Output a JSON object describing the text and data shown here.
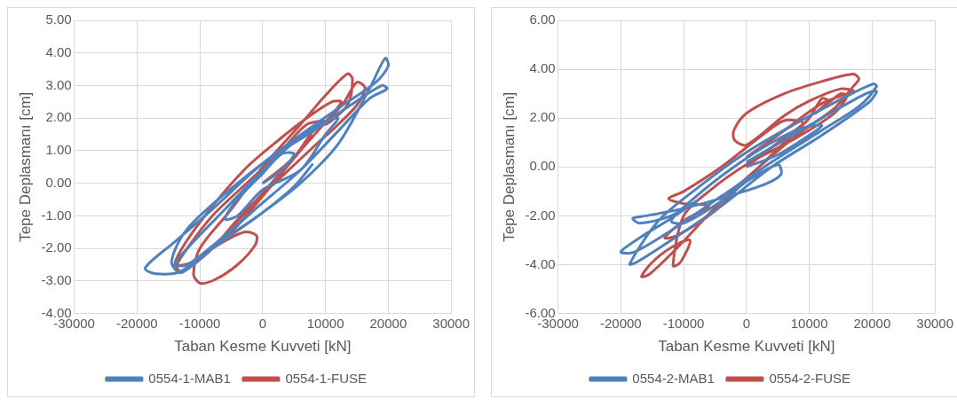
{
  "chart_data": [
    {
      "type": "line",
      "xlabel": "Taban Kesme Kuvveti [kN]",
      "ylabel": "Tepe Deplasmanı [cm]",
      "xlim": [
        -30000,
        30000
      ],
      "ylim": [
        -4,
        5
      ],
      "xticks": [
        -30000,
        -20000,
        -10000,
        0,
        10000,
        20000,
        30000
      ],
      "yticks": [
        {
          "value": -4,
          "label": "-4.00"
        },
        {
          "value": -3,
          "label": "-3.00"
        },
        {
          "value": -2,
          "label": "-2.00"
        },
        {
          "value": -1,
          "label": "-1.00"
        },
        {
          "value": 0,
          "label": "0.00"
        },
        {
          "value": 1,
          "label": "1.00"
        },
        {
          "value": 2,
          "label": "2.00"
        },
        {
          "value": 3,
          "label": "3.00"
        },
        {
          "value": 4,
          "label": "4.00"
        },
        {
          "value": 5,
          "label": "5.00"
        }
      ],
      "grid": true,
      "legend": "bottom",
      "marker": "none",
      "line_style": "solid",
      "series": [
        {
          "name": "0554-1-MAB1",
          "color": "#4f81bd",
          "x": [
            0,
            3000,
            5000,
            3000,
            0,
            -4000,
            -6000,
            -4000,
            0,
            6000,
            10000,
            12000,
            9000,
            4000,
            0,
            -6000,
            -12000,
            -14000,
            -12000,
            -6000,
            0,
            6000,
            12000,
            17000,
            19800,
            19000,
            14000,
            8000,
            0,
            -8000,
            -14000,
            -18700,
            -17000,
            -13000,
            -6000,
            0,
            6000,
            12000,
            17000,
            19500,
            20000,
            18000,
            12000,
            4000,
            -4000,
            -12000,
            -14500,
            -13000,
            -8000,
            0,
            5000,
            8000
          ],
          "values": [
            0,
            0.4,
            0.9,
            0.9,
            0.3,
            -0.5,
            -1.1,
            -1.0,
            -0.2,
            0.4,
            1.5,
            2.0,
            1.8,
            1.1,
            0.4,
            -0.8,
            -2.0,
            -2.5,
            -2.5,
            -1.6,
            -0.6,
            0.4,
            1.6,
            2.6,
            2.9,
            3.0,
            2.4,
            1.6,
            0.6,
            -0.8,
            -1.8,
            -2.6,
            -2.78,
            -2.7,
            -1.7,
            -0.9,
            0.0,
            1.2,
            2.9,
            3.84,
            3.6,
            3.1,
            2.3,
            1.2,
            0.0,
            -1.4,
            -2.4,
            -2.75,
            -2.0,
            -0.9,
            -0.1,
            0.6
          ]
        },
        {
          "name": "0554-1-FUSE",
          "color": "#c0504d",
          "x": [
            0,
            5000,
            8000,
            10000,
            7000,
            3000,
            -2000,
            -8000,
            -12000,
            -13500,
            -11000,
            -5000,
            0,
            6000,
            11000,
            12500,
            11000,
            7000,
            3000,
            -3000,
            -10000,
            -13900,
            -13000,
            -8000,
            -3000,
            -1000,
            -1200,
            -4000,
            -7500,
            -9900,
            -11000,
            -10000,
            -5000,
            0,
            6000,
            10000,
            13500,
            14300,
            13500,
            10000,
            13000,
            15000,
            16300,
            15000,
            12000,
            8000,
            3000,
            -3000,
            -8000,
            -11000,
            -7000,
            0,
            5000,
            8000
          ],
          "values": [
            0,
            0.8,
            1.6,
            1.9,
            1.8,
            1.0,
            0.1,
            -1.0,
            -2.0,
            -2.5,
            -2.4,
            -1.5,
            -0.4,
            1.0,
            2.1,
            2.5,
            2.5,
            2.0,
            1.4,
            0.4,
            -1.2,
            -2.4,
            -2.7,
            -2.0,
            -1.5,
            -1.6,
            -1.9,
            -2.5,
            -2.95,
            -3.07,
            -2.8,
            -2.0,
            -0.8,
            0.5,
            1.8,
            2.7,
            3.36,
            3.2,
            2.4,
            1.8,
            2.5,
            3.1,
            2.93,
            2.4,
            1.8,
            1.1,
            0.2,
            -0.9,
            -2.0,
            -2.5,
            -1.8,
            -0.3,
            0.8,
            1.5
          ]
        }
      ]
    },
    {
      "type": "line",
      "xlabel": "Taban Kesme Kuvveti [kN]",
      "ylabel": "Tepe Deplasmanı [cm]",
      "xlim": [
        -30000,
        30000
      ],
      "ylim": [
        -6,
        6
      ],
      "xticks": [
        -30000,
        -20000,
        -10000,
        0,
        10000,
        20000,
        30000
      ],
      "yticks": [
        {
          "value": -6,
          "label": "-6.00"
        },
        {
          "value": -4,
          "label": "-4.00"
        },
        {
          "value": -2,
          "label": "-2.00"
        },
        {
          "value": 0,
          "label": "0.00"
        },
        {
          "value": 2,
          "label": "2.00"
        },
        {
          "value": 4,
          "label": "4.00"
        },
        {
          "value": 6,
          "label": "6.00"
        }
      ],
      "grid": true,
      "legend": "bottom",
      "marker": "none",
      "line_style": "solid",
      "series": [
        {
          "name": "0554-2-MAB1",
          "color": "#4f81bd",
          "x": [
            0,
            5000,
            10000,
            12000,
            9000,
            4000,
            -2000,
            -8000,
            -12000,
            -10000,
            -4000,
            0,
            5000,
            5500,
            3000,
            -3000,
            -10000,
            -16000,
            -18100,
            -17000,
            -12000,
            -8000,
            -12000,
            -17000,
            -20000,
            -18000,
            -12000,
            -4000,
            4000,
            12000,
            18000,
            20700,
            20200,
            16000,
            8000,
            0,
            -8000,
            -14000,
            -18600,
            -17500,
            -12000,
            -4000,
            4000,
            12000,
            19500,
            20700,
            19000,
            12000,
            4000,
            0
          ],
          "values": [
            0,
            0.5,
            1.3,
            1.7,
            1.6,
            1.0,
            0.0,
            -1.2,
            -2.2,
            -2.3,
            -1.4,
            -0.6,
            0.1,
            -0.3,
            -0.7,
            -1.2,
            -1.7,
            -2.0,
            -2.1,
            -2.3,
            -2.0,
            -1.4,
            -2.1,
            -2.9,
            -3.47,
            -3.5,
            -2.6,
            -1.2,
            0.2,
            1.5,
            2.5,
            3.29,
            3.4,
            2.9,
            1.8,
            0.6,
            -0.9,
            -2.2,
            -3.97,
            -3.9,
            -3.0,
            -1.6,
            0.0,
            1.3,
            2.65,
            3.1,
            3.0,
            2.0,
            0.8,
            0.2
          ]
        },
        {
          "name": "0554-2-FUSE",
          "color": "#c0504d",
          "x": [
            0,
            6000,
            9000,
            6000,
            2000,
            -4000,
            -10000,
            -12400,
            -10000,
            -6000,
            -10000,
            -13000,
            -11000,
            -5000,
            0,
            6000,
            10000,
            12000,
            13000,
            11000,
            13000,
            15000,
            16000,
            14000,
            8000,
            0,
            -6000,
            -10000,
            -11700,
            -10500,
            -9000,
            -12000,
            -15000,
            -16700,
            -15500,
            -11000,
            -4000,
            2000,
            8000,
            14000,
            17000,
            17900,
            17000,
            12000,
            6000,
            0,
            -2000,
            -1900,
            0,
            6000,
            10000,
            15000,
            17000,
            12000,
            5000,
            0
          ],
          "values": [
            0,
            1.2,
            1.8,
            1.9,
            1.2,
            0.0,
            -1.0,
            -1.3,
            -1.5,
            -1.6,
            -2.2,
            -2.9,
            -2.8,
            -1.8,
            -0.5,
            1.0,
            2.0,
            2.8,
            2.7,
            2.2,
            2.6,
            3.0,
            2.9,
            2.2,
            1.2,
            0.1,
            -1.0,
            -2.0,
            -4.04,
            -3.9,
            -3.0,
            -3.3,
            -3.9,
            -4.48,
            -4.4,
            -3.3,
            -1.4,
            0.0,
            1.3,
            2.4,
            3.3,
            3.6,
            3.8,
            3.5,
            3.0,
            2.2,
            1.5,
            1.1,
            0.9,
            2.1,
            2.7,
            3.2,
            3.1,
            2.6,
            1.3,
            0.4
          ]
        }
      ]
    }
  ]
}
